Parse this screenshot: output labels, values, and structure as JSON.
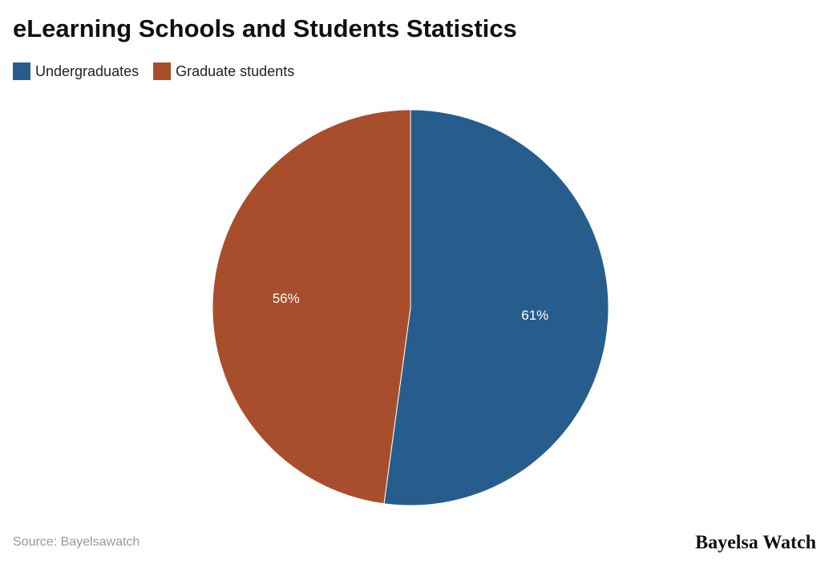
{
  "chart_data": {
    "type": "pie",
    "title": "eLearning Schools and Students Statistics",
    "categories": [
      "Undergraduates",
      "Graduate students"
    ],
    "values": [
      61,
      56
    ],
    "value_labels": [
      "61%",
      "56%"
    ],
    "colors": [
      "#265d8c",
      "#a94e2c"
    ],
    "source": "Source: Bayelsawatch",
    "watermark": "Bayelsa Watch"
  }
}
